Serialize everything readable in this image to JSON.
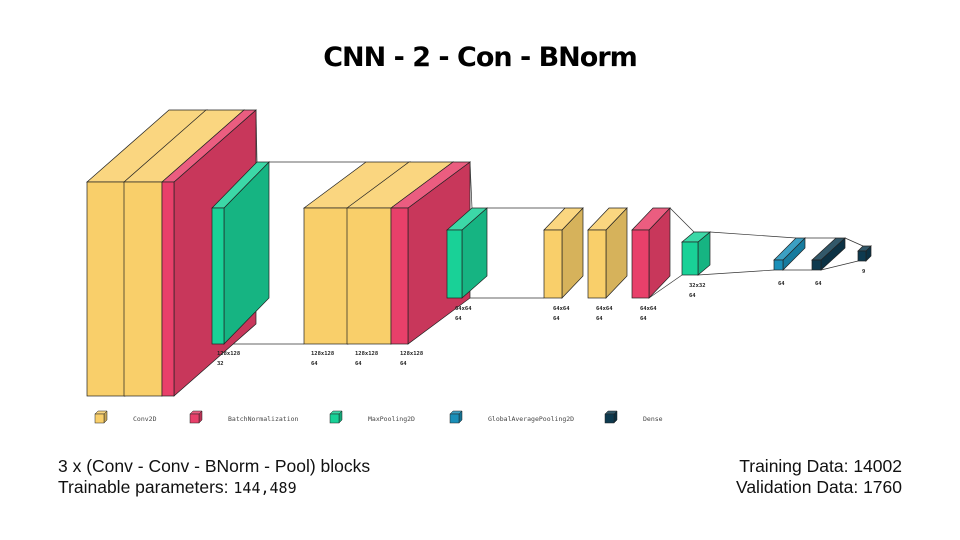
{
  "title": "CNN - 2 - Con - BNorm",
  "colors": {
    "Conv2D": "#f9cf6a",
    "BatchNormalization": "#e8406a",
    "MaxPooling2D": "#19d197",
    "GlobalAveragePooling2D": "#1a8fb8",
    "Dense": "#0e3a4f"
  },
  "layers": [
    {
      "type": "Conv2D"
    },
    {
      "type": "Conv2D"
    },
    {
      "type": "BatchNormalization"
    },
    {
      "type": "MaxPooling2D",
      "label": [
        "128x128",
        "32"
      ]
    },
    {
      "type": "Conv2D",
      "label": [
        "128x128",
        "64"
      ]
    },
    {
      "type": "Conv2D",
      "label": [
        "128x128",
        "64"
      ]
    },
    {
      "type": "BatchNormalization",
      "label": [
        "128x128",
        "64"
      ]
    },
    {
      "type": "MaxPooling2D",
      "label": [
        "64x64",
        "64"
      ]
    },
    {
      "type": "Conv2D",
      "label": [
        "64x64",
        "64"
      ]
    },
    {
      "type": "Conv2D",
      "label": [
        "64x64",
        "64"
      ]
    },
    {
      "type": "BatchNormalization",
      "label": [
        "64x64",
        "64"
      ]
    },
    {
      "type": "MaxPooling2D",
      "label": [
        "32x32",
        "64"
      ]
    },
    {
      "type": "GlobalAveragePooling2D",
      "label": [
        "64"
      ]
    },
    {
      "type": "Dense",
      "label": [
        "64"
      ]
    },
    {
      "type": "Dense",
      "label": [
        "9"
      ]
    }
  ],
  "legend": [
    "Conv2D",
    "BatchNormalization",
    "MaxPooling2D",
    "GlobalAveragePooling2D",
    "Dense"
  ],
  "captions": {
    "blocks": "3 x (Conv - Conv - BNorm - Pool) blocks",
    "params_label": "Trainable parameters: ",
    "params_value": "144,489",
    "training": "Training Data: 14002",
    "validation": "Validation Data: 1760"
  }
}
